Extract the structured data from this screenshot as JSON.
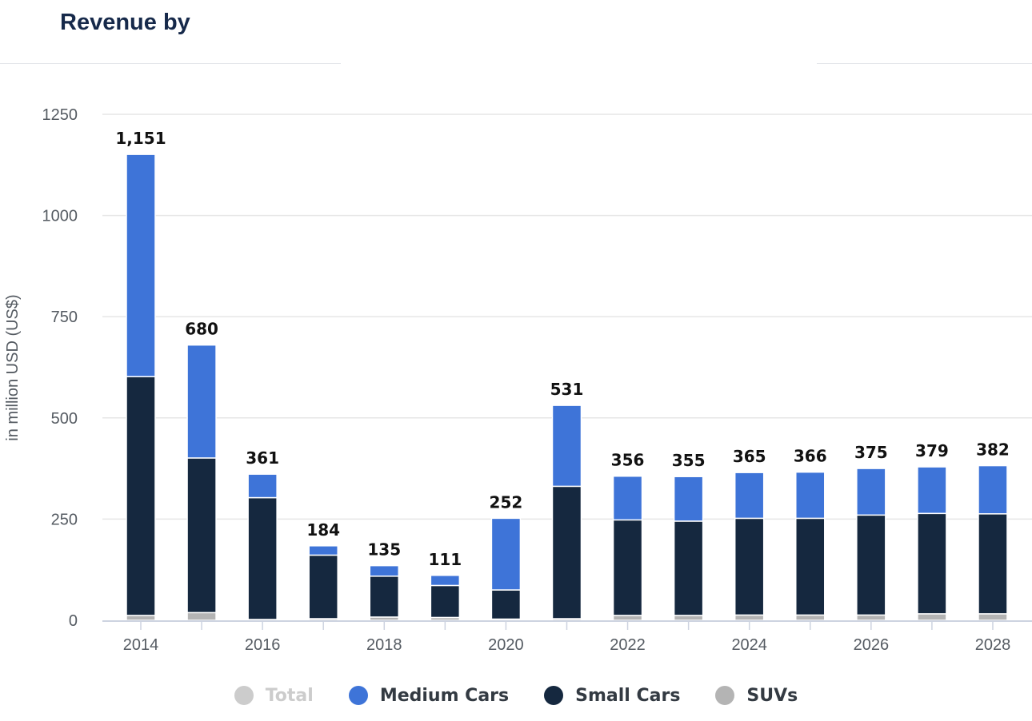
{
  "header": {
    "title": "Revenue by"
  },
  "chart_data": {
    "type": "bar",
    "stacked": true,
    "categories": [
      "2014",
      "2015",
      "2016",
      "2017",
      "2018",
      "2019",
      "2020",
      "2021",
      "2022",
      "2023",
      "2024",
      "2025",
      "2026",
      "2027",
      "2028"
    ],
    "x_tick_labels": [
      "2014",
      "2016",
      "2018",
      "2020",
      "2022",
      "2024",
      "2026",
      "2028"
    ],
    "series": [
      {
        "name": "SUVs",
        "color": "#b4b4b4",
        "values": [
          12,
          19,
          2,
          4,
          8,
          7,
          3,
          4,
          12,
          12,
          13,
          13,
          13,
          16,
          16
        ]
      },
      {
        "name": "Small Cars",
        "color": "#15283f",
        "values": [
          590,
          382,
          301,
          157,
          101,
          79,
          72,
          327,
          236,
          233,
          239,
          239,
          247,
          248,
          247
        ]
      },
      {
        "name": "Medium Cars",
        "color": "#3e74d8",
        "values": [
          549,
          279,
          58,
          23,
          26,
          25,
          177,
          200,
          108,
          110,
          113,
          114,
          115,
          115,
          119
        ]
      }
    ],
    "totals": [
      1151,
      680,
      361,
      184,
      135,
      111,
      252,
      531,
      356,
      355,
      365,
      366,
      375,
      379,
      382
    ],
    "total_labels": [
      "1,151",
      "680",
      "361",
      "184",
      "135",
      "111",
      "252",
      "531",
      "356",
      "355",
      "365",
      "366",
      "375",
      "379",
      "382"
    ],
    "ylabel": "in million USD (US$)",
    "ylim": [
      0,
      1250
    ],
    "yticks": [
      0,
      250,
      500,
      750,
      1000,
      1250
    ],
    "grid": true,
    "legend_position": "bottom-center",
    "legend": [
      {
        "label": "Total",
        "color": "#cccccc",
        "hidden": true
      },
      {
        "label": "Medium Cars",
        "color": "#3e74d8",
        "hidden": false
      },
      {
        "label": "Small Cars",
        "color": "#15283f",
        "hidden": false
      },
      {
        "label": "SUVs",
        "color": "#b4b4b4",
        "hidden": false
      }
    ]
  }
}
